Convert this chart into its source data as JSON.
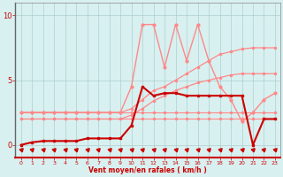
{
  "x": [
    0,
    1,
    2,
    3,
    4,
    5,
    6,
    7,
    8,
    9,
    10,
    11,
    12,
    13,
    14,
    15,
    16,
    17,
    18,
    19,
    20,
    21,
    22,
    23
  ],
  "rafales": [
    2.5,
    2.5,
    2.5,
    2.5,
    2.5,
    2.5,
    2.5,
    2.5,
    2.5,
    2.5,
    4.5,
    9.3,
    9.3,
    6.0,
    9.3,
    6.5,
    9.3,
    6.5,
    4.5,
    3.5,
    1.8,
    2.5,
    3.5,
    4.0
  ],
  "slope_steep": [
    2.5,
    2.5,
    2.5,
    2.5,
    2.5,
    2.5,
    2.5,
    2.5,
    2.5,
    2.5,
    2.8,
    3.5,
    4.2,
    4.5,
    5.0,
    5.5,
    6.0,
    6.5,
    7.0,
    7.2,
    7.4,
    7.5,
    7.5,
    7.5
  ],
  "slope_mid": [
    2.0,
    2.0,
    2.0,
    2.0,
    2.0,
    2.0,
    2.0,
    2.0,
    2.0,
    2.0,
    2.3,
    2.8,
    3.4,
    3.8,
    4.2,
    4.5,
    4.8,
    5.0,
    5.2,
    5.4,
    5.5,
    5.5,
    5.5,
    5.5
  ],
  "horiz_upper": [
    2.5,
    2.5,
    2.5,
    2.5,
    2.5,
    2.5,
    2.5,
    2.5,
    2.5,
    2.5,
    2.5,
    2.5,
    2.5,
    2.5,
    2.5,
    2.5,
    2.5,
    2.5,
    2.5,
    2.5,
    2.5,
    2.5,
    2.5,
    2.5
  ],
  "horiz_lower": [
    2.0,
    2.0,
    2.0,
    2.0,
    2.0,
    2.0,
    2.0,
    2.0,
    2.0,
    2.0,
    2.0,
    2.0,
    2.0,
    2.0,
    2.0,
    2.0,
    2.0,
    2.0,
    2.0,
    2.0,
    2.0,
    2.0,
    2.0,
    2.0
  ],
  "wind_main": [
    0.0,
    0.2,
    0.3,
    0.3,
    0.3,
    0.3,
    0.5,
    0.5,
    0.5,
    0.5,
    1.5,
    4.5,
    3.8,
    4.0,
    4.0,
    3.8,
    3.8,
    3.8,
    3.8,
    3.8,
    3.8,
    0.0,
    2.0,
    2.0
  ],
  "arrows_y": [
    -0.35,
    -0.35,
    -0.35,
    -0.35,
    -0.35,
    -0.35,
    -0.35,
    -0.35,
    -0.35,
    -0.35,
    -0.35,
    -0.35,
    -0.35,
    -0.35,
    -0.35,
    -0.35,
    -0.35,
    -0.35,
    -0.35,
    -0.35,
    -0.35,
    -0.35,
    -0.35,
    -0.35
  ],
  "bg_color": "#d8f0f0",
  "grid_color": "#aacccc",
  "color_dark_red": "#cc0000",
  "color_light_red": "#ff8888",
  "color_medium_red": "#ee4444",
  "xlabel": "Vent moyen/en rafales ( km/h )",
  "ylim": [
    -1.0,
    11.0
  ],
  "xlim": [
    -0.5,
    23.5
  ],
  "yticks": [
    0,
    5,
    10
  ],
  "xticks": [
    0,
    1,
    2,
    3,
    4,
    5,
    6,
    7,
    8,
    9,
    10,
    11,
    12,
    13,
    14,
    15,
    16,
    17,
    18,
    19,
    20,
    21,
    22,
    23
  ]
}
